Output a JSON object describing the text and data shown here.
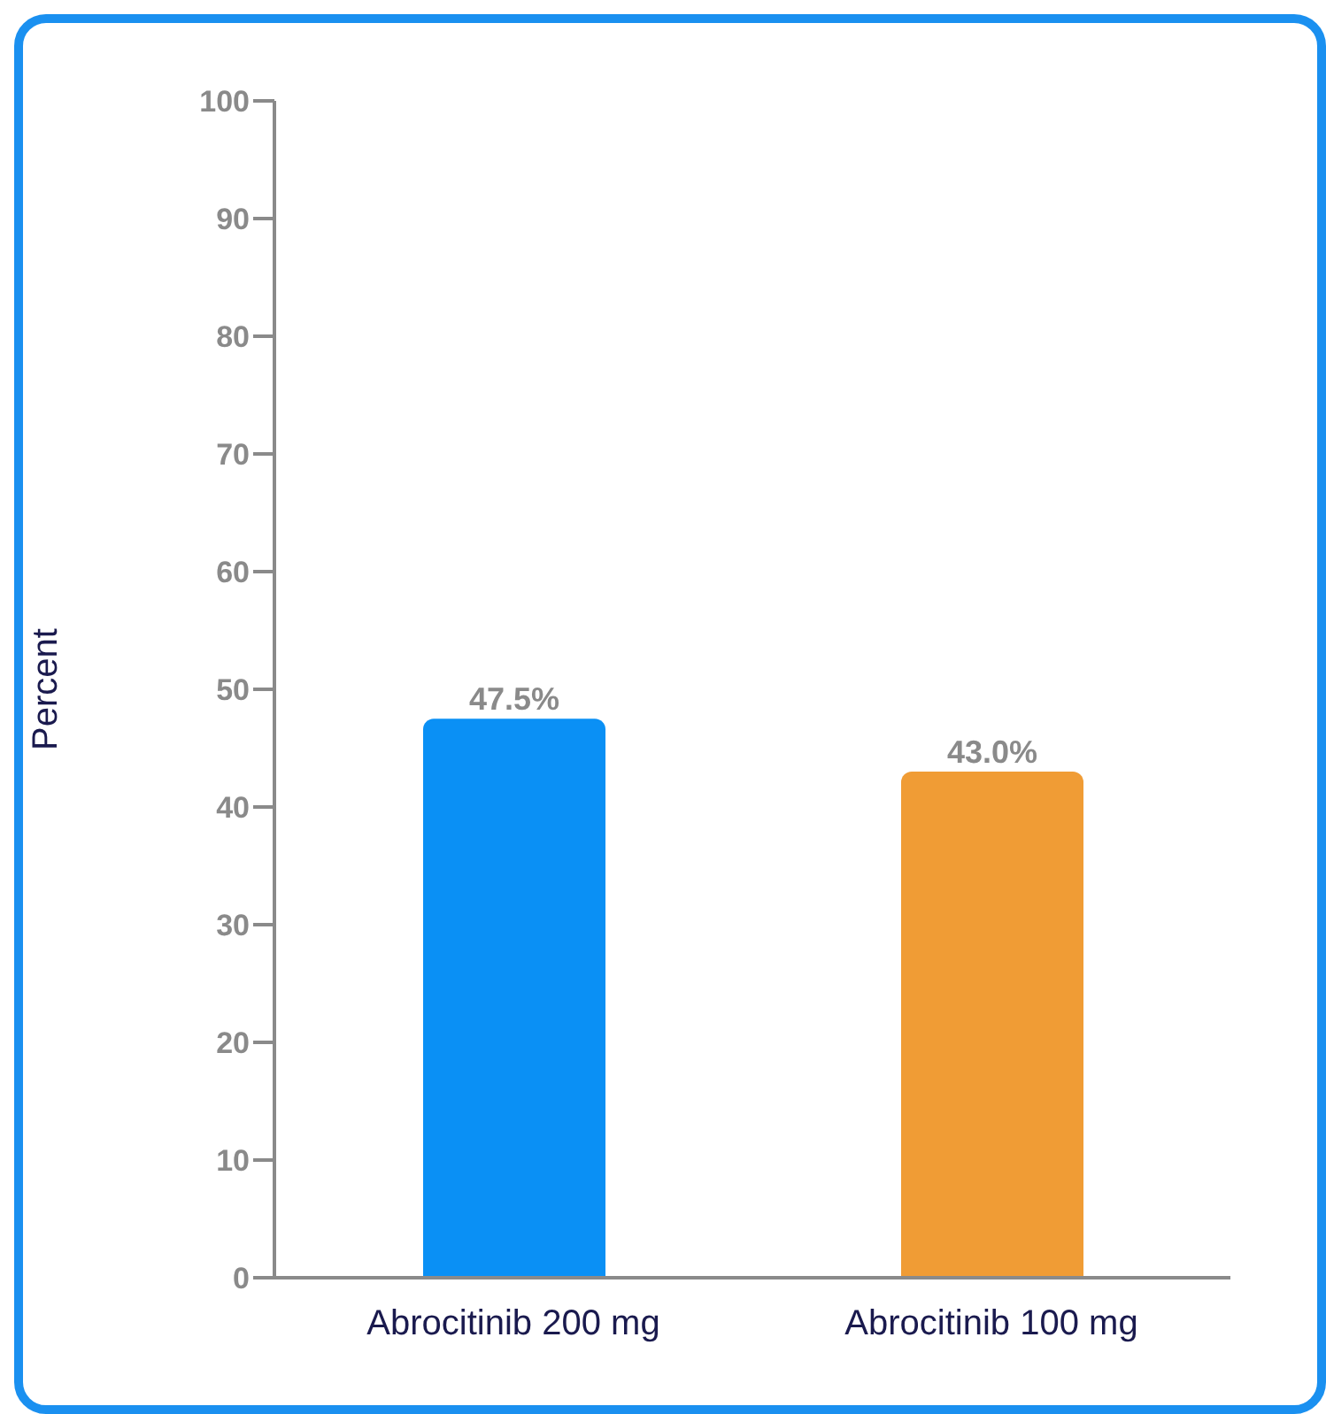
{
  "chart_data": {
    "type": "bar",
    "ylabel": "Percent",
    "categories": [
      "Abrocitinib 200 mg",
      "Abrocitinib 100 mg"
    ],
    "values": [
      47.5,
      43.0
    ],
    "colors": [
      "#0a90f5",
      "#f09c35"
    ],
    "ylim": [
      0,
      100
    ],
    "yticks": [
      0,
      10,
      20,
      30,
      40,
      50,
      60,
      70,
      80,
      90,
      100
    ],
    "value_labels": [
      "47.5%",
      "43.0%"
    ],
    "grid": false,
    "legend": false
  }
}
